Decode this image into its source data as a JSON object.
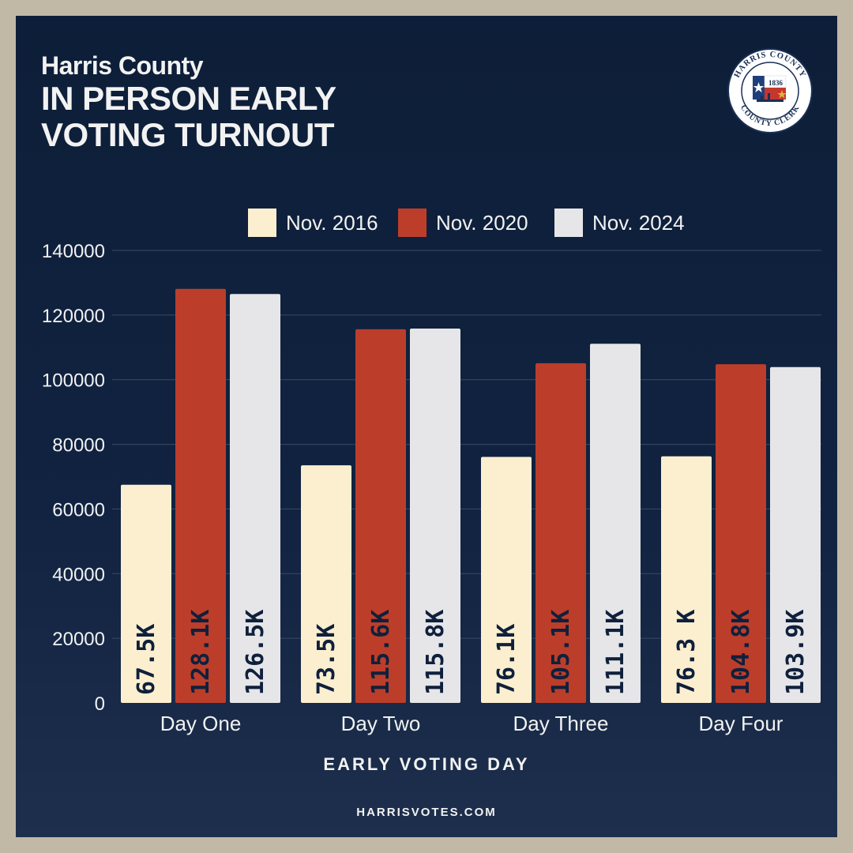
{
  "header": {
    "county": "Harris County",
    "title": "IN PERSON EARLY\nVOTING TURNOUT"
  },
  "seal": {
    "top_text": "HARRIS COUNTY",
    "bottom_text": "COUNTY CLERK",
    "year": "1836"
  },
  "colors": {
    "background": "#0f203c",
    "frame": "#c2b8a6",
    "nov2016": "#fcefcf",
    "nov2020": "#bc3e2a",
    "nov2024": "#e6e6e8",
    "text": "#f2f2f2",
    "grid": "#3a4a66"
  },
  "legend": [
    {
      "label": "Nov. 2016",
      "color": "#fcefcf"
    },
    {
      "label": "Nov. 2020",
      "color": "#bc3e2a"
    },
    {
      "label": "Nov. 2024",
      "color": "#e6e6e8"
    }
  ],
  "chart_data": {
    "type": "bar",
    "title": "IN PERSON EARLY VOTING TURNOUT",
    "categories": [
      "Day One",
      "Day Two",
      "Day Three",
      "Day Four"
    ],
    "series": [
      {
        "name": "Nov. 2016",
        "values": [
          67500,
          73500,
          76100,
          76300
        ],
        "labels": [
          "67.5K",
          "73.5K",
          "76.1K",
          "76.3 K"
        ]
      },
      {
        "name": "Nov. 2020",
        "values": [
          128100,
          115600,
          105100,
          104800
        ],
        "labels": [
          "128.1K",
          "115.6K",
          "105.1K",
          "104.8K"
        ]
      },
      {
        "name": "Nov. 2024",
        "values": [
          126500,
          115800,
          111100,
          103900
        ],
        "labels": [
          "126.5K",
          "115.8K",
          "111.1K",
          "103.9K"
        ]
      }
    ],
    "yticks": [
      0,
      20000,
      40000,
      60000,
      80000,
      100000,
      120000,
      140000
    ],
    "ylim": [
      0,
      140000
    ],
    "xlabel": "EARLY VOTING DAY",
    "ylabel": "",
    "legend_position": "top",
    "grid": true
  },
  "footer": {
    "url": "HARRISVOTES.COM"
  }
}
